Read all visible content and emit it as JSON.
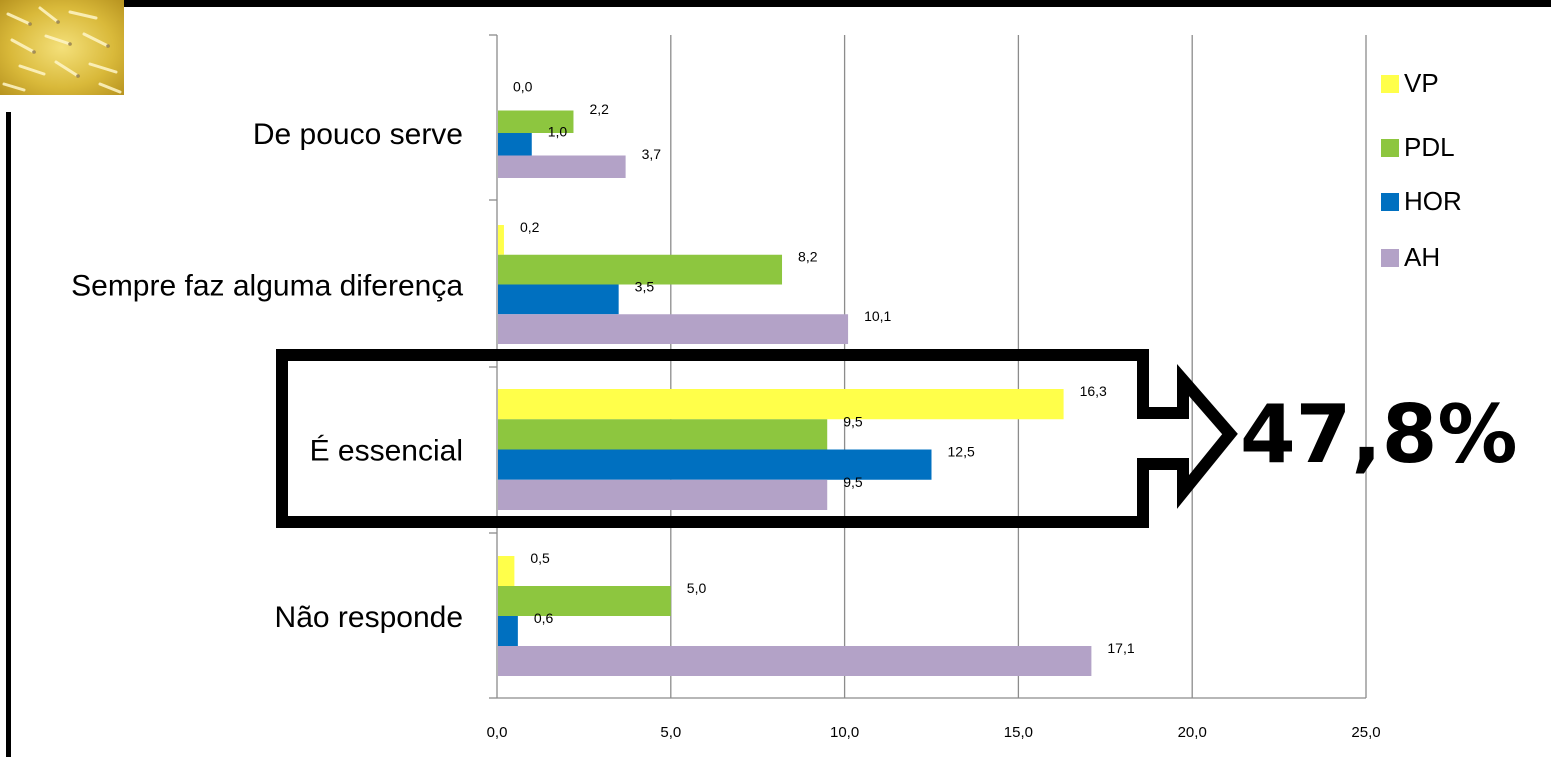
{
  "chart_data": {
    "type": "bar",
    "orientation": "horizontal",
    "categories": [
      "De pouco serve",
      "Sempre faz alguma diferença",
      "É essencial",
      "Não responde"
    ],
    "series": [
      {
        "name": "VP",
        "color": "#ffff4a",
        "values": [
          0.0,
          0.2,
          16.3,
          0.5
        ],
        "labels": [
          "0,0",
          "0,2",
          "16,3",
          "0,5"
        ]
      },
      {
        "name": "PDL",
        "color": "#8dc63f",
        "values": [
          2.2,
          8.2,
          9.5,
          5.0
        ],
        "labels": [
          "2,2",
          "8,2",
          "9,5",
          "5,0"
        ]
      },
      {
        "name": "HOR",
        "color": "#0070c0",
        "values": [
          1.0,
          3.5,
          12.5,
          0.6
        ],
        "labels": [
          "1,0",
          "3,5",
          "12,5",
          "0,6"
        ]
      },
      {
        "name": "AH",
        "color": "#b3a2c7",
        "values": [
          3.7,
          10.1,
          9.5,
          17.1
        ],
        "labels": [
          "3,7",
          "10,1",
          "9,5",
          "17,1"
        ]
      }
    ],
    "xlim": [
      0,
      25
    ],
    "xticks": [
      0,
      5,
      10,
      15,
      20,
      25
    ],
    "xtick_labels": [
      "0,0",
      "5,0",
      "10,0",
      "15,0",
      "20,0",
      "25,0"
    ],
    "grid": "vertical",
    "legend": "top-right",
    "highlight": {
      "category": "É essencial",
      "label": "47,8%"
    }
  }
}
